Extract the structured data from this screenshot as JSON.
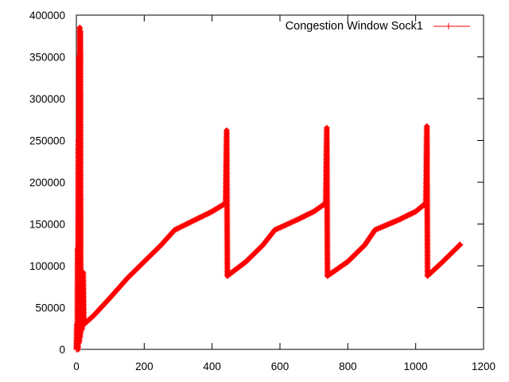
{
  "chart_data": {
    "type": "line",
    "title": "",
    "xlabel": "",
    "ylabel": "",
    "xlim": [
      0,
      1200
    ],
    "ylim": [
      0,
      400000
    ],
    "x_ticks": [
      0,
      200,
      400,
      600,
      800,
      1000,
      1200
    ],
    "y_ticks": [
      0,
      50000,
      100000,
      150000,
      200000,
      250000,
      300000,
      350000,
      400000
    ],
    "x_tick_labels": [
      "0",
      "200",
      "400",
      "600",
      "800",
      "1000",
      "1200"
    ],
    "y_tick_labels": [
      "0",
      "50000",
      "100000",
      "150000",
      "200000",
      "250000",
      "300000",
      "350000",
      "400000"
    ],
    "grid": false,
    "legend_position": "top-right",
    "series": [
      {
        "name": "Congestion Window Sock1",
        "color": "#ff0000",
        "marker": "plus",
        "points": [
          [
            0,
            0
          ],
          [
            2,
            30000
          ],
          [
            3,
            5000
          ],
          [
            4,
            120000
          ],
          [
            5,
            0
          ],
          [
            6,
            250000
          ],
          [
            7,
            8000
          ],
          [
            8,
            350000
          ],
          [
            9,
            10000
          ],
          [
            10,
            385000
          ],
          [
            11,
            15000
          ],
          [
            12,
            380000
          ],
          [
            13,
            20000
          ],
          [
            14,
            90000
          ],
          [
            15,
            30000
          ],
          [
            16,
            88000
          ],
          [
            17,
            25000
          ],
          [
            18,
            92000
          ],
          [
            19,
            32000
          ],
          [
            20,
            92000
          ],
          [
            22,
            30000
          ],
          [
            50,
            40000
          ],
          [
            100,
            62000
          ],
          [
            150,
            85000
          ],
          [
            200,
            105000
          ],
          [
            250,
            125000
          ],
          [
            290,
            143000
          ],
          [
            350,
            155000
          ],
          [
            400,
            165000
          ],
          [
            440,
            175000
          ],
          [
            443,
            262000
          ],
          [
            445,
            88000
          ],
          [
            500,
            105000
          ],
          [
            550,
            125000
          ],
          [
            585,
            143000
          ],
          [
            650,
            155000
          ],
          [
            700,
            165000
          ],
          [
            735,
            175000
          ],
          [
            738,
            265000
          ],
          [
            740,
            88000
          ],
          [
            800,
            105000
          ],
          [
            850,
            125000
          ],
          [
            880,
            143000
          ],
          [
            950,
            155000
          ],
          [
            1000,
            165000
          ],
          [
            1030,
            175000
          ],
          [
            1033,
            267000
          ],
          [
            1035,
            88000
          ],
          [
            1080,
            105000
          ],
          [
            1135,
            127000
          ]
        ]
      }
    ]
  }
}
